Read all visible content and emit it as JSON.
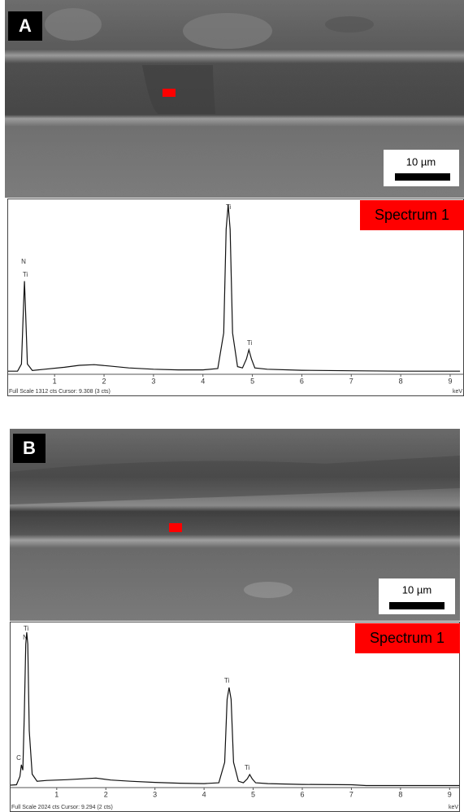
{
  "panels": [
    {
      "label": "A",
      "scale_bar": "10 µm",
      "spectrum": {
        "title": "Spectrum 1",
        "xlim": [
          0.06,
          9.28
        ],
        "ylim": [
          0,
          1312
        ],
        "xticks": [
          1,
          2,
          3,
          4,
          5,
          6,
          7,
          8,
          9
        ],
        "x_unit": "keV",
        "footer": "Full Scale 1312 cts Cursor: 9.308  (3 cts)",
        "peak_labels": [
          "N",
          "Ti",
          "Ti",
          "Ti"
        ],
        "x": [
          0.06,
          0.25,
          0.33,
          0.37,
          0.39,
          0.41,
          0.45,
          0.55,
          0.8,
          1.2,
          1.5,
          1.8,
          2.1,
          2.5,
          3.0,
          3.5,
          4.0,
          4.3,
          4.42,
          4.47,
          4.51,
          4.55,
          4.6,
          4.7,
          4.8,
          4.88,
          4.93,
          4.98,
          5.05,
          5.3,
          6,
          7,
          8,
          9.2
        ],
        "counts": [
          5,
          5,
          60,
          500,
          700,
          500,
          60,
          10,
          20,
          35,
          50,
          55,
          45,
          30,
          20,
          15,
          15,
          25,
          300,
          1100,
          1290,
          1100,
          300,
          40,
          30,
          100,
          170,
          100,
          30,
          20,
          12,
          8,
          5,
          5
        ]
      }
    },
    {
      "label": "B",
      "scale_bar": "10 µm",
      "spectrum": {
        "title": "Spectrum 1",
        "xlim": [
          0.06,
          9.21
        ],
        "ylim": [
          0,
          2024
        ],
        "xticks": [
          1,
          2,
          3,
          4,
          5,
          6,
          7,
          8,
          9
        ],
        "x_unit": "keV",
        "footer": "Full Scale 2024 cts Cursor: 9.294  (2 cts)",
        "peak_labels": [
          "Ti",
          "N",
          "C",
          "Ti",
          "Ti"
        ],
        "x": [
          0.06,
          0.18,
          0.25,
          0.28,
          0.31,
          0.34,
          0.37,
          0.39,
          0.41,
          0.44,
          0.5,
          0.6,
          0.8,
          1.2,
          1.5,
          1.8,
          2.1,
          2.5,
          3.0,
          3.5,
          4.0,
          4.3,
          4.42,
          4.47,
          4.51,
          4.55,
          4.6,
          4.7,
          4.8,
          4.88,
          4.93,
          4.98,
          5.05,
          5.3,
          6,
          7,
          7.3,
          8,
          9.2
        ],
        "counts": [
          10,
          15,
          120,
          270,
          200,
          900,
          1800,
          1950,
          1800,
          700,
          150,
          60,
          70,
          80,
          90,
          100,
          75,
          60,
          45,
          35,
          30,
          40,
          300,
          1100,
          1250,
          1100,
          300,
          60,
          40,
          90,
          145,
          90,
          40,
          30,
          20,
          15,
          5,
          5,
          5
        ]
      }
    }
  ]
}
